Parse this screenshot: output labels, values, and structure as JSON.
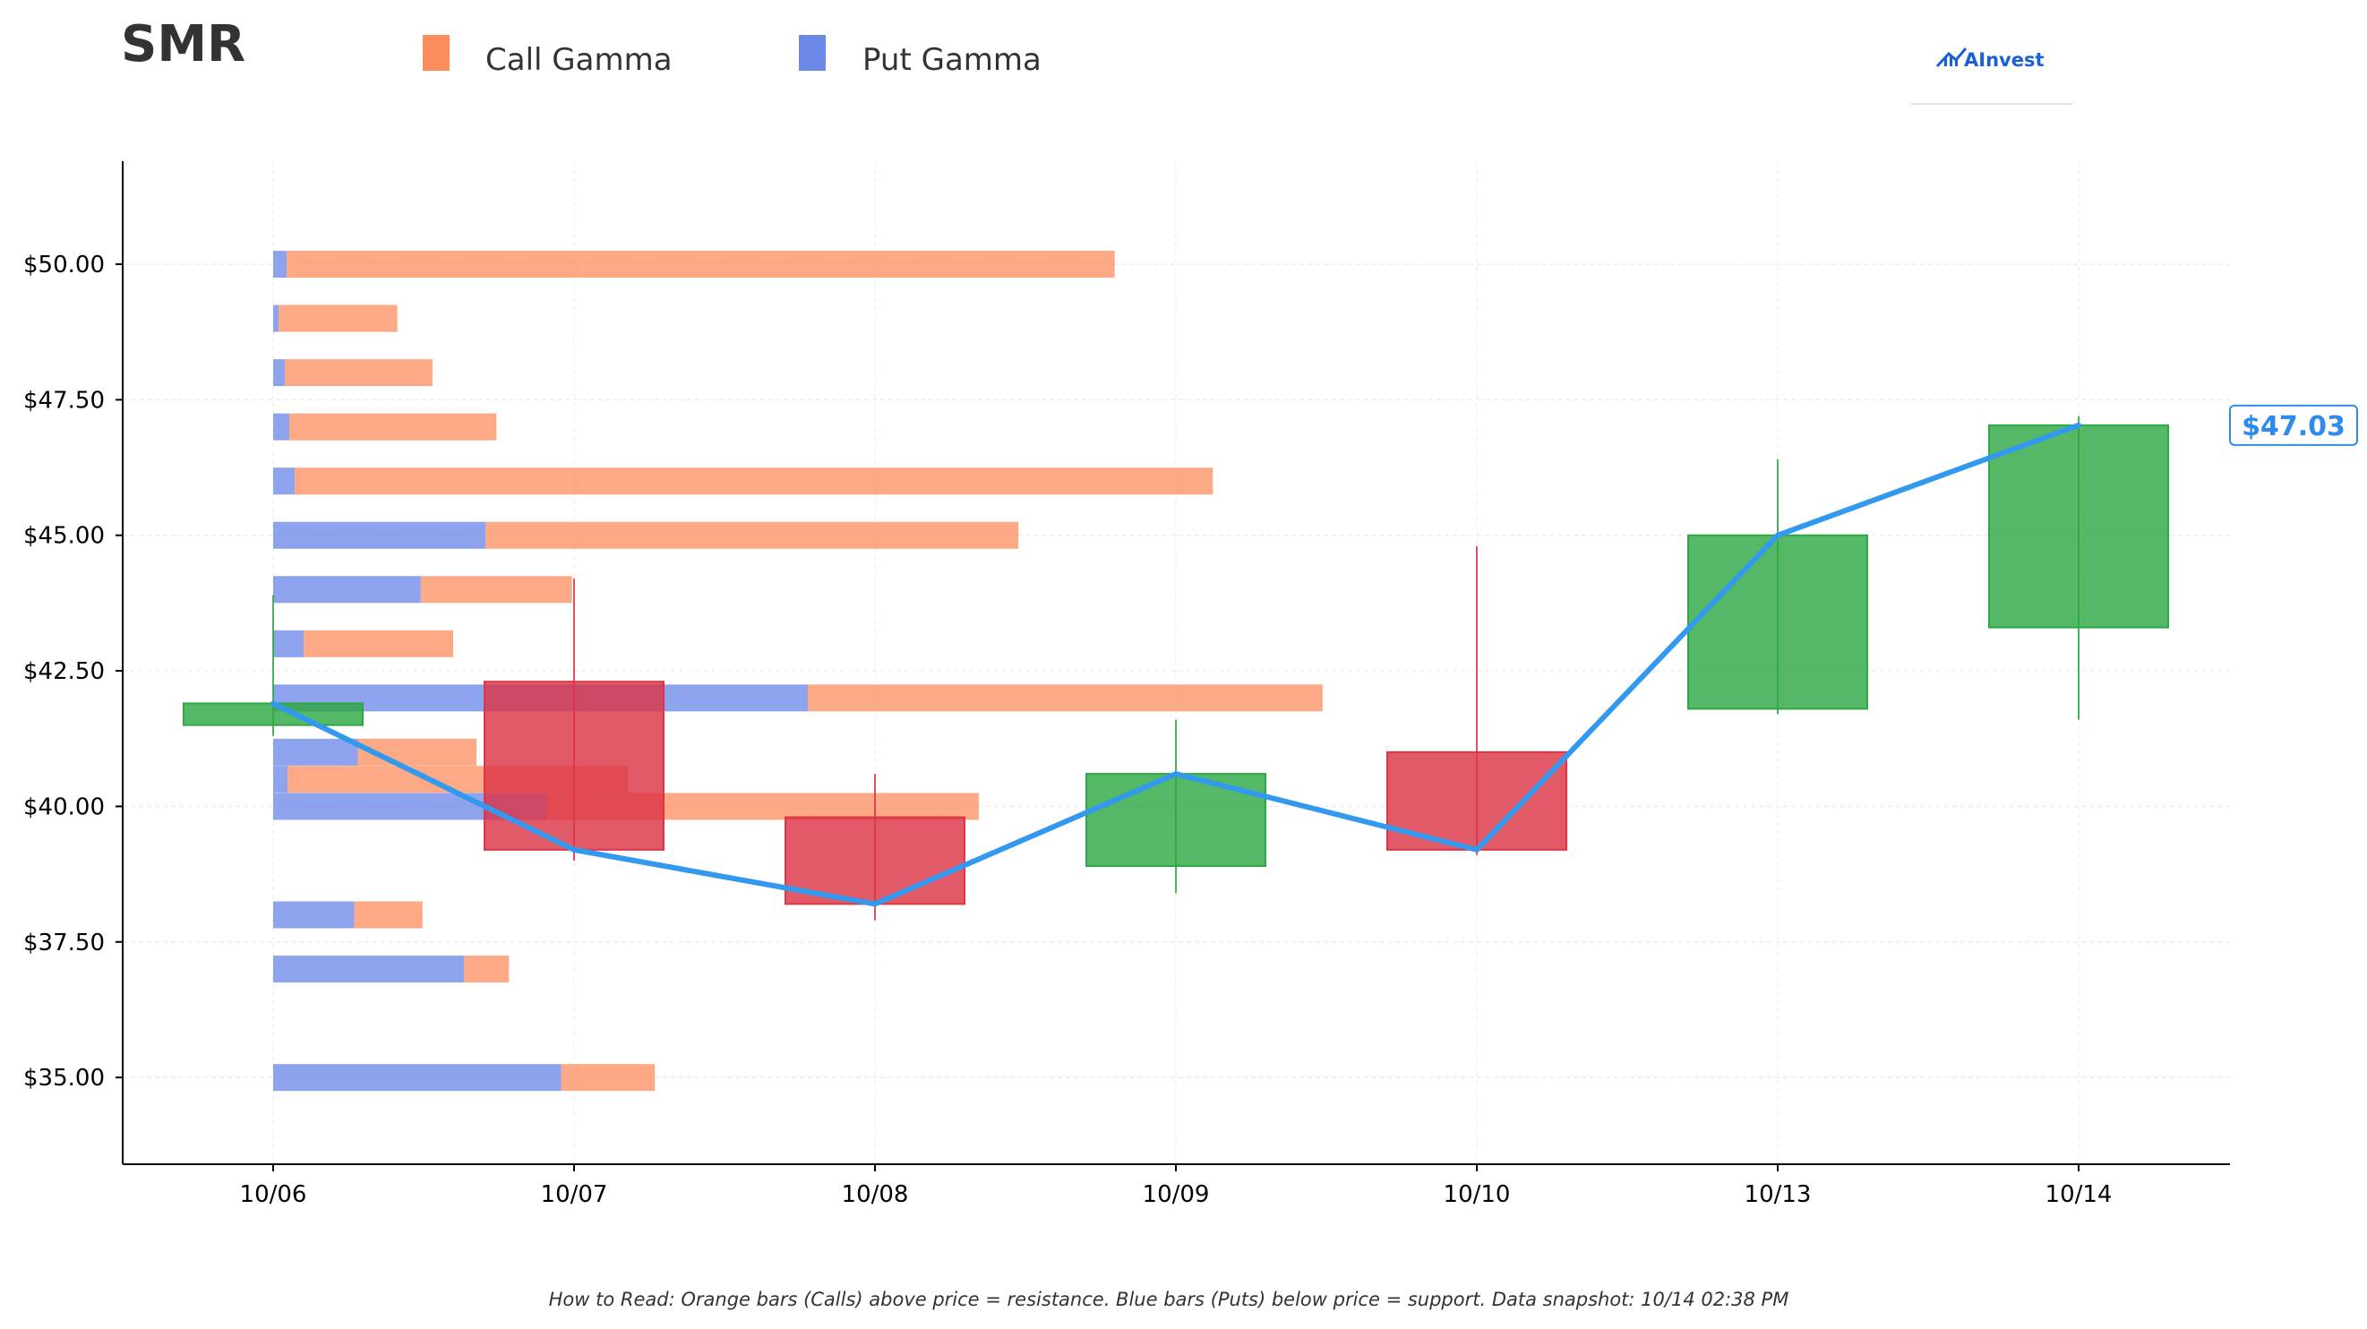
{
  "header": {
    "ticker": "SMR",
    "logo_text": "AInvest"
  },
  "colors": {
    "call": "#fd8c5e",
    "put": "#6d89e8",
    "up": "#2ea844",
    "down": "#dc3545",
    "price_line": "#3399ee",
    "price_tag": "#2f8bea"
  },
  "legend": [
    {
      "label": "Call Gamma",
      "color": "#fd8c5e"
    },
    {
      "label": "Put Gamma",
      "color": "#6d89e8"
    }
  ],
  "footer": {
    "note": "How to Read: Orange bars (Calls) above price = resistance. Blue bars (Puts) below price = support. Data snapshot: 10/14 02:38 PM"
  },
  "last_price_label": "$47.03",
  "chart_data": {
    "type": "candlestick",
    "title": "SMR",
    "x_categories": [
      "10/06",
      "10/07",
      "10/08",
      "10/09",
      "10/10",
      "10/13",
      "10/14"
    ],
    "y_ticks": [
      "$35.00",
      "$37.50",
      "$40.00",
      "$42.50",
      "$45.00",
      "$47.50",
      "$50.00"
    ],
    "y_tick_values": [
      35,
      37.5,
      40,
      42.5,
      45,
      47.5,
      50
    ],
    "ylim": [
      33.4,
      51.9
    ],
    "grid": true,
    "legend_position": "top",
    "candles": [
      {
        "date": "10/06",
        "open": 41.5,
        "high": 43.9,
        "low": 41.3,
        "close": 41.9
      },
      {
        "date": "10/07",
        "open": 42.3,
        "high": 44.2,
        "low": 39.0,
        "close": 39.2
      },
      {
        "date": "10/08",
        "open": 39.8,
        "high": 40.6,
        "low": 37.9,
        "close": 38.2
      },
      {
        "date": "10/09",
        "open": 38.9,
        "high": 41.6,
        "low": 38.4,
        "close": 40.6
      },
      {
        "date": "10/10",
        "open": 41.0,
        "high": 44.8,
        "low": 39.1,
        "close": 39.2
      },
      {
        "date": "10/13",
        "open": 41.8,
        "high": 46.4,
        "low": 41.7,
        "close": 45.0
      },
      {
        "date": "10/14",
        "open": 43.3,
        "high": 47.2,
        "low": 41.6,
        "close": 47.03
      }
    ],
    "price_line": {
      "name": "Close",
      "values": [
        41.9,
        39.2,
        38.2,
        40.6,
        39.2,
        45.0,
        47.03
      ]
    },
    "last_price": 47.03,
    "gamma_x_range": [
      0,
      1
    ],
    "gamma_bars": [
      {
        "strike": 50.0,
        "put": 0.0075,
        "call": 0.46
      },
      {
        "strike": 49.0,
        "put": 0.003,
        "call": 0.066
      },
      {
        "strike": 48.0,
        "put": 0.0065,
        "call": 0.082
      },
      {
        "strike": 47.0,
        "put": 0.009,
        "call": 0.115
      },
      {
        "strike": 46.0,
        "put": 0.012,
        "call": 0.51
      },
      {
        "strike": 45.0,
        "put": 0.118,
        "call": 0.296
      },
      {
        "strike": 44.0,
        "put": 0.082,
        "call": 0.084
      },
      {
        "strike": 43.0,
        "put": 0.017,
        "call": 0.083
      },
      {
        "strike": 42.0,
        "put": 0.297,
        "call": 0.286
      },
      {
        "strike": 41.0,
        "put": 0.047,
        "call": 0.066
      },
      {
        "strike": 40.5,
        "put": 0.008,
        "call": 0.189
      },
      {
        "strike": 40.0,
        "put": 0.152,
        "call": 0.24
      },
      {
        "strike": 38.0,
        "put": 0.045,
        "call": 0.038
      },
      {
        "strike": 37.0,
        "put": 0.106,
        "call": 0.025
      },
      {
        "strike": 35.0,
        "put": 0.16,
        "call": 0.052
      }
    ]
  }
}
